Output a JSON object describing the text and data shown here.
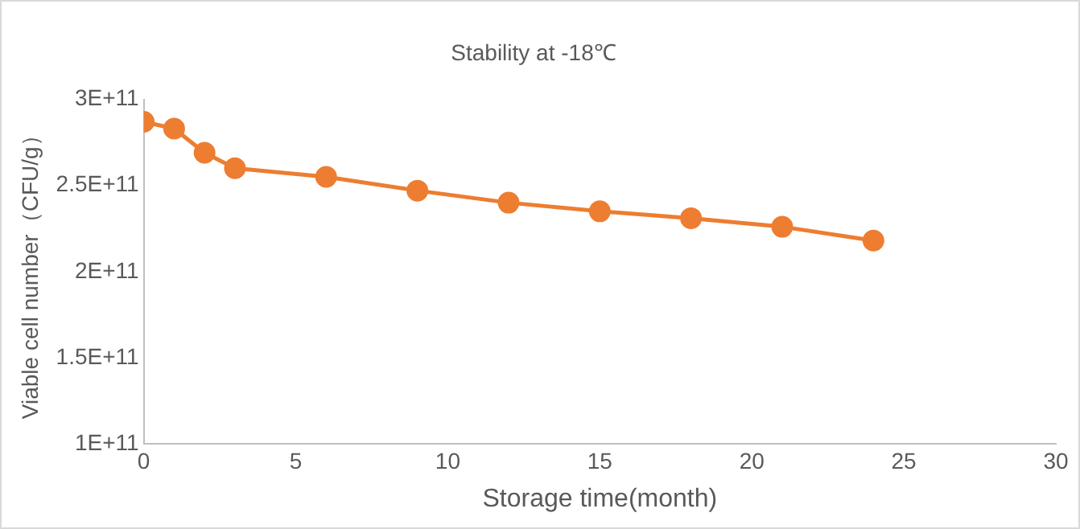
{
  "chart_data": {
    "type": "line",
    "title": "Stability at -18℃",
    "xlabel": "Storage time(month)",
    "ylabel": "Viable cell number（CFU/g）",
    "x": [
      0,
      1,
      2,
      3,
      6,
      9,
      12,
      15,
      18,
      21,
      24
    ],
    "series": [
      {
        "color": "#ed7d31",
        "values": [
          287000000000.0,
          283000000000.0,
          269000000000.0,
          260000000000.0,
          255000000000.0,
          247000000000.0,
          240000000000.0,
          235000000000.0,
          231000000000.0,
          226000000000.0,
          218000000000.0
        ]
      }
    ],
    "xlim": [
      0,
      30
    ],
    "xticks": [
      0,
      5,
      10,
      15,
      20,
      25,
      30
    ],
    "ylim": [
      100000000000.0,
      300000000000.0
    ],
    "yticks": [
      {
        "value": 100000000000.0,
        "label": "1E+11"
      },
      {
        "value": 150000000000.0,
        "label": "1.5E+11"
      },
      {
        "value": 200000000000.0,
        "label": "2E+11"
      },
      {
        "value": 250000000000.0,
        "label": "2.5E+11"
      },
      {
        "value": 300000000000.0,
        "label": "3E+11"
      }
    ],
    "grid": false,
    "legend": false,
    "marker": "circle",
    "line_style": "solid"
  }
}
